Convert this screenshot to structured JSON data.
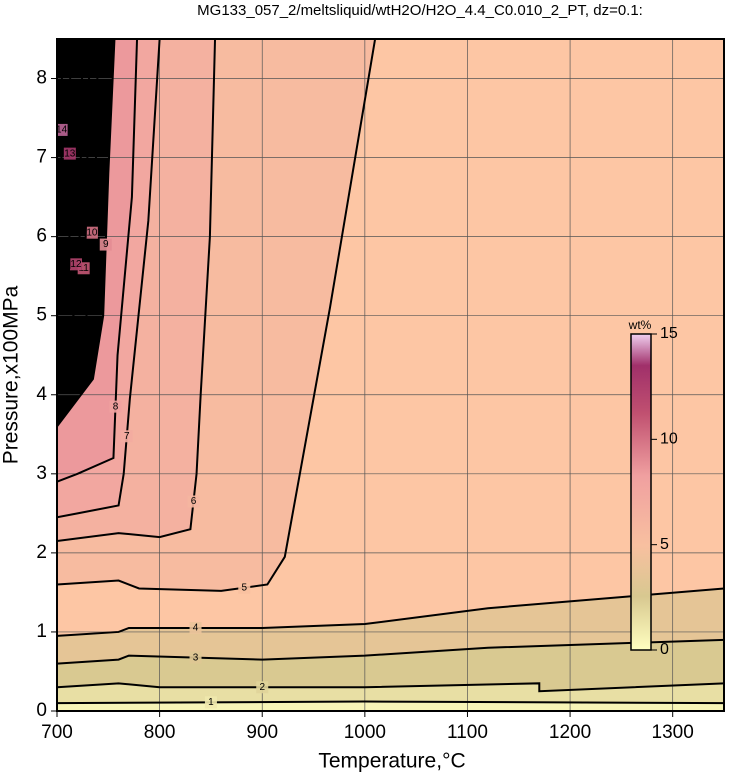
{
  "chart_data": {
    "type": "contour",
    "title": "MG133_057_2/meltsliquid/wtH2O/H2O_4.4_C0.010_2_PT, dz=0.1:",
    "x_label": "Temperature,°C",
    "y_label": "Pressure,x100MPa",
    "xlim": [
      700,
      1350
    ],
    "ylim": [
      0,
      8.5
    ],
    "xticks": [
      700,
      800,
      900,
      1000,
      1100,
      1200,
      1300
    ],
    "yticks": [
      0,
      1,
      2,
      3,
      4,
      5,
      6,
      7,
      8
    ],
    "grid": true,
    "contours": [
      {
        "level": 5,
        "x": [
          1010,
          966,
          922,
          905,
          860,
          780,
          760,
          700
        ],
        "y": [
          8.5,
          5.1,
          1.95,
          1.6,
          1.52,
          1.55,
          1.65,
          1.6
        ]
      },
      {
        "level": 6,
        "x": [
          854,
          849,
          840,
          836,
          830,
          800,
          760,
          700
        ],
        "y": [
          8.5,
          6,
          4,
          3,
          2.3,
          2.2,
          2.25,
          2.15
        ]
      },
      {
        "level": 7,
        "x": [
          800,
          789,
          771,
          765,
          760,
          720,
          700
        ],
        "y": [
          8.5,
          6.2,
          3.95,
          3,
          2.6,
          2.5,
          2.45
        ]
      },
      {
        "level": 8,
        "x": [
          778,
          773,
          759,
          755,
          720,
          700
        ],
        "y": [
          8.5,
          6.5,
          4.5,
          3.2,
          3.0,
          2.9
        ]
      },
      {
        "level": 9,
        "x": [
          756,
          750,
          745,
          735,
          700
        ],
        "y": [
          8.5,
          6.8,
          5.0,
          4.2,
          3.6
        ]
      },
      {
        "level": 10,
        "x": [
          740,
          738,
          730,
          720,
          700
        ],
        "y": [
          8.5,
          7,
          5.1,
          4.3,
          4.1
        ]
      },
      {
        "level": 11,
        "x": [
          732,
          728,
          724,
          700
        ],
        "y": [
          8.5,
          6,
          5.2,
          4.6
        ]
      },
      {
        "level": 12,
        "x": [
          725,
          722,
          715,
          700
        ],
        "y": [
          8.5,
          6,
          5.3,
          5.0
        ]
      },
      {
        "level": 13,
        "x": [
          713,
          712,
          700
        ],
        "y": [
          8.5,
          5.6,
          5.3
        ]
      },
      {
        "level": 14,
        "x": [
          705,
          704,
          700
        ],
        "y": [
          8.5,
          6.2,
          6.1
        ]
      },
      {
        "level": 4,
        "x": [
          700,
          760,
          770,
          900,
          1000,
          1120,
          1350
        ],
        "y": [
          0.95,
          1.0,
          1.05,
          1.05,
          1.1,
          1.3,
          1.55
        ]
      },
      {
        "level": 3,
        "x": [
          700,
          760,
          770,
          900,
          1000,
          1120,
          1350
        ],
        "y": [
          0.6,
          0.65,
          0.7,
          0.65,
          0.7,
          0.8,
          0.9
        ]
      },
      {
        "level": 2,
        "x": [
          700,
          760,
          800,
          1000,
          1170,
          1170,
          1350
        ],
        "y": [
          0.3,
          0.35,
          0.3,
          0.3,
          0.35,
          0.25,
          0.35
        ]
      },
      {
        "level": 1,
        "x": [
          700,
          1000,
          1350
        ],
        "y": [
          0.1,
          0.12,
          0.1
        ]
      }
    ],
    "colorbar": {
      "label": "wt%",
      "lim": [
        0,
        15
      ],
      "ticks": [
        0,
        5,
        10,
        15
      ]
    }
  }
}
